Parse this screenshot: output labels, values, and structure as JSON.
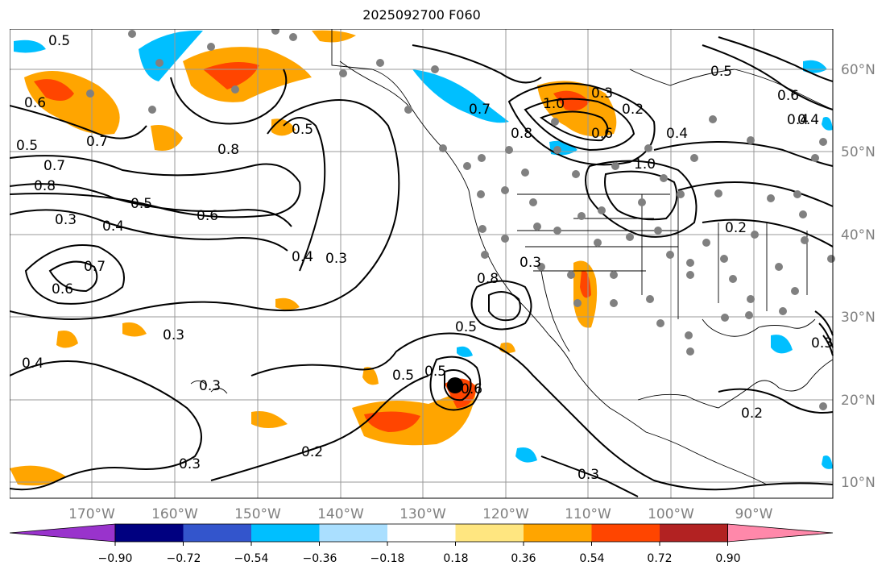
{
  "title": "2025092700 F060",
  "map": {
    "lon_labels": [
      "170°W",
      "160°W",
      "150°W",
      "140°W",
      "130°W",
      "120°W",
      "110°W",
      "100°W",
      "90°W"
    ],
    "lat_labels": [
      "60°N",
      "50°N",
      "40°N",
      "30°N",
      "20°N",
      "10°N"
    ],
    "contour_labels": [
      "0.5",
      "0.6",
      "0.5",
      "0.7",
      "0.7",
      "0.8",
      "0.3",
      "0.4",
      "0.5",
      "0.6",
      "0.7",
      "0.6",
      "0.8",
      "0.5",
      "0.4",
      "0.3",
      "0.3",
      "0.4",
      "0.3",
      "0.3",
      "0.2",
      "0.3",
      "0.5",
      "0.5",
      "0.6",
      "0.5",
      "0.8",
      "0.3",
      "0.7",
      "0.8",
      "1.0",
      "0.3",
      "0.2",
      "0.6",
      "0.4",
      "1.0",
      "0.4",
      "0.5",
      "0.6",
      "0.2",
      "0.2",
      "0.3",
      "0.4"
    ],
    "storm_marker": "tropical-cyclone-center"
  },
  "colorbar": {
    "ticks": [
      "−0.90",
      "−0.72",
      "−0.54",
      "−0.36",
      "−0.18",
      "0.18",
      "0.36",
      "0.54",
      "0.72",
      "0.90"
    ],
    "colors": [
      "#9933cc",
      "#000080",
      "#3355cc",
      "#00bfff",
      "#aadfff",
      "#ffffff",
      "#ffe680",
      "#ffa500",
      "#ff4500",
      "#b22222",
      "#ff88aa"
    ]
  }
}
